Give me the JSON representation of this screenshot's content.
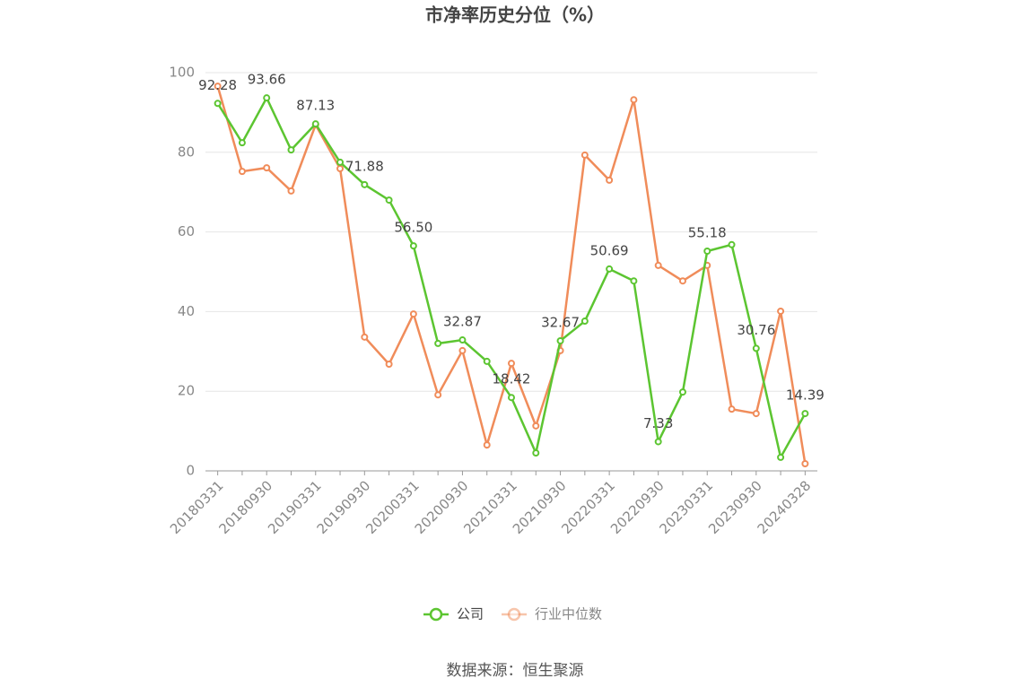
{
  "chart_data": {
    "type": "line",
    "title": "市净率历史分位（%）",
    "categories": [
      "20180331",
      null,
      "20180930",
      null,
      "20190331",
      null,
      "20190930",
      null,
      "20200331",
      null,
      "20200930",
      null,
      "20210331",
      null,
      "20210930",
      null,
      "20220331",
      null,
      "20220930",
      null,
      "20230331",
      null,
      "20230930",
      null,
      "20240328"
    ],
    "series": [
      {
        "name": "公司",
        "color": "#5cc531",
        "values": [
          92.28,
          82.4,
          93.66,
          80.6,
          87.13,
          77.5,
          71.88,
          68.0,
          56.5,
          32.0,
          32.87,
          27.5,
          18.42,
          4.5,
          32.67,
          37.6,
          50.69,
          47.7,
          7.33,
          19.8,
          55.18,
          56.8,
          30.76,
          3.4,
          14.39
        ],
        "value_labels": [
          "92.28",
          null,
          "93.66",
          null,
          "87.13",
          null,
          "71.88",
          null,
          "56.50",
          null,
          "32.87",
          null,
          "18.42",
          null,
          "32.67",
          null,
          "50.69",
          null,
          "7.33",
          null,
          "55.18",
          null,
          "30.76",
          null,
          "14.39"
        ]
      },
      {
        "name": "行业中位数",
        "color": "#f08c5a",
        "values": [
          96.6,
          75.2,
          76.1,
          70.3,
          86.9,
          75.9,
          33.6,
          26.8,
          39.4,
          19.1,
          30.2,
          6.5,
          27.0,
          11.3,
          30.2,
          79.3,
          73.0,
          93.2,
          51.6,
          47.7,
          51.6,
          15.5,
          14.4,
          40.1,
          1.8
        ]
      }
    ],
    "ylim": [
      0,
      100
    ],
    "yticks": [
      0,
      20,
      40,
      60,
      80,
      100
    ],
    "grid": true,
    "source": "数据来源：恒生聚源"
  }
}
